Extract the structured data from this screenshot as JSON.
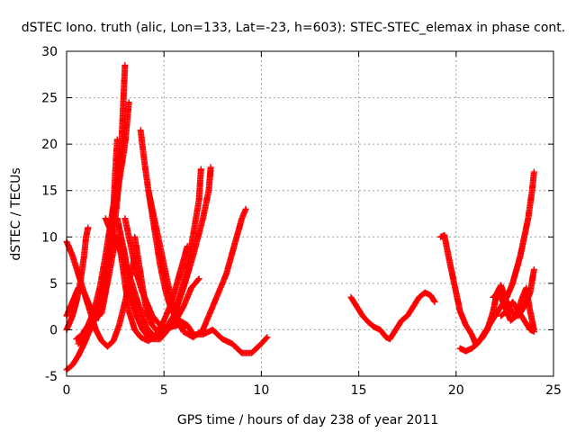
{
  "chart_data": {
    "type": "scatter",
    "title": "dSTEC Iono. truth (alic, Lon=133, Lat=-23, h=603): STEC-STEC_elemax in phase cont.",
    "xlabel": "GPS time / hours of day 238 of year 2011",
    "ylabel": "dSTEC  / TECUs",
    "xlim": [
      0,
      25
    ],
    "ylim": [
      -5,
      30
    ],
    "xticks": [
      "0",
      "5",
      "10",
      "15",
      "20",
      "25"
    ],
    "yticks": [
      "-5",
      "0",
      "5",
      "10",
      "15",
      "20",
      "25",
      "30"
    ],
    "grid": true,
    "marker": "plus",
    "color": "#ff0000",
    "series": [
      {
        "points": [
          [
            0,
            9.5
          ],
          [
            0.3,
            8
          ],
          [
            0.6,
            6
          ],
          [
            0.9,
            4
          ],
          [
            1.2,
            2
          ],
          [
            1.5,
            0
          ],
          [
            1.8,
            -1.2
          ],
          [
            2.1,
            -1.8
          ],
          [
            2.4,
            -1.2
          ],
          [
            2.7,
            0.5
          ],
          [
            3.0,
            3
          ],
          [
            3.3,
            6
          ],
          [
            3.5,
            8
          ]
        ]
      },
      {
        "points": [
          [
            0,
            -4.3
          ],
          [
            0.3,
            -3.8
          ],
          [
            0.6,
            -2.8
          ],
          [
            0.9,
            -1.5
          ],
          [
            1.2,
            0
          ],
          [
            1.5,
            2
          ],
          [
            1.8,
            4
          ],
          [
            2.1,
            6.5
          ],
          [
            2.4,
            10
          ],
          [
            2.6,
            14
          ],
          [
            2.8,
            19
          ],
          [
            2.9,
            24
          ],
          [
            3.0,
            28.5
          ]
        ]
      },
      {
        "points": [
          [
            0,
            0
          ],
          [
            0.3,
            1.5
          ],
          [
            0.5,
            3
          ],
          [
            0.7,
            5
          ],
          [
            0.9,
            8
          ],
          [
            1.0,
            10
          ],
          [
            1.1,
            11
          ]
        ]
      },
      {
        "points": [
          [
            0,
            1.5
          ],
          [
            0.3,
            3
          ],
          [
            0.6,
            4.5
          ],
          [
            0.9,
            4
          ],
          [
            1.2,
            2.5
          ],
          [
            1.5,
            1.2
          ],
          [
            1.8,
            1.8
          ],
          [
            2.0,
            4
          ],
          [
            2.2,
            8
          ],
          [
            2.4,
            13
          ],
          [
            2.5,
            17
          ],
          [
            2.6,
            20.5
          ]
        ]
      },
      {
        "points": [
          [
            0.5,
            -1
          ],
          [
            0.8,
            -0.5
          ],
          [
            1.1,
            0.5
          ],
          [
            1.4,
            2
          ],
          [
            1.7,
            4.5
          ],
          [
            2.0,
            8
          ],
          [
            2.3,
            12
          ],
          [
            2.6,
            16
          ],
          [
            2.8,
            19.5
          ]
        ]
      },
      {
        "points": [
          [
            0.6,
            -1.5
          ],
          [
            0.9,
            -1
          ],
          [
            1.2,
            0
          ],
          [
            1.5,
            1.5
          ],
          [
            1.8,
            4
          ],
          [
            2.1,
            8
          ],
          [
            2.4,
            12
          ],
          [
            2.7,
            16
          ],
          [
            3.0,
            20
          ],
          [
            3.2,
            24.5
          ]
        ]
      },
      {
        "points": [
          [
            1.5,
            1
          ],
          [
            1.8,
            2.5
          ],
          [
            2.1,
            5
          ],
          [
            2.4,
            8.5
          ],
          [
            2.6,
            10
          ],
          [
            2.8,
            8
          ],
          [
            3.0,
            5
          ],
          [
            3.2,
            2
          ],
          [
            3.5,
            0
          ],
          [
            3.8,
            -0.8
          ],
          [
            4.2,
            -1.2
          ],
          [
            4.6,
            -0.5
          ],
          [
            5.0,
            1
          ],
          [
            5.4,
            3
          ],
          [
            5.8,
            6
          ],
          [
            6.2,
            9
          ]
        ]
      },
      {
        "points": [
          [
            2.0,
            12
          ],
          [
            2.3,
            10.5
          ],
          [
            2.6,
            9.5
          ],
          [
            2.9,
            8
          ],
          [
            3.2,
            6
          ],
          [
            3.5,
            4
          ],
          [
            3.8,
            2
          ],
          [
            4.1,
            0.3
          ],
          [
            4.5,
            -0.8
          ],
          [
            5.0,
            -0.2
          ],
          [
            5.5,
            1.5
          ],
          [
            6.0,
            4.5
          ],
          [
            6.5,
            8
          ],
          [
            7.0,
            12
          ],
          [
            7.3,
            15
          ],
          [
            7.4,
            17.5
          ]
        ]
      },
      {
        "points": [
          [
            2.6,
            12
          ],
          [
            2.8,
            10
          ],
          [
            3.0,
            8
          ],
          [
            3.2,
            5
          ],
          [
            3.4,
            3
          ],
          [
            3.6,
            1.5
          ],
          [
            3.9,
            0
          ],
          [
            4.3,
            -1
          ],
          [
            4.8,
            -1
          ],
          [
            5.2,
            0
          ],
          [
            5.6,
            2
          ],
          [
            6.0,
            5
          ],
          [
            6.4,
            9
          ],
          [
            6.8,
            14
          ],
          [
            6.9,
            17.3
          ]
        ]
      },
      {
        "points": [
          [
            3.0,
            12
          ],
          [
            3.3,
            9
          ],
          [
            3.6,
            6
          ],
          [
            3.9,
            4
          ],
          [
            4.1,
            3
          ],
          [
            4.4,
            1.5
          ],
          [
            4.8,
            0.5
          ],
          [
            5.2,
            0.2
          ],
          [
            5.7,
            0.5
          ],
          [
            6.1,
            0.2
          ]
        ]
      },
      {
        "points": [
          [
            3.5,
            10
          ],
          [
            3.8,
            6
          ],
          [
            4.1,
            2
          ],
          [
            4.4,
            0.5
          ],
          [
            4.8,
            -0.5
          ],
          [
            5.2,
            0
          ],
          [
            5.6,
            1
          ],
          [
            6.0,
            2.5
          ],
          [
            6.4,
            4.5
          ],
          [
            6.8,
            5.5
          ]
        ]
      },
      {
        "points": [
          [
            3.8,
            21.5
          ],
          [
            4.0,
            18
          ],
          [
            4.2,
            15
          ],
          [
            4.5,
            11
          ],
          [
            4.8,
            7
          ],
          [
            5.1,
            4
          ],
          [
            5.4,
            2
          ],
          [
            5.8,
            1
          ],
          [
            6.2,
            0.5
          ],
          [
            6.5,
            -0.5
          ],
          [
            7.0,
            -0.5
          ],
          [
            7.5,
            0
          ],
          [
            8.0,
            -1
          ],
          [
            8.5,
            -1.5
          ],
          [
            9.0,
            -2.5
          ],
          [
            9.5,
            -2.5
          ],
          [
            10.0,
            -1.5
          ],
          [
            10.3,
            -0.8
          ]
        ]
      },
      {
        "points": [
          [
            4.2,
            15
          ],
          [
            4.5,
            12
          ],
          [
            4.8,
            9
          ],
          [
            5.1,
            6
          ],
          [
            5.4,
            3
          ],
          [
            5.7,
            1
          ],
          [
            6.0,
            -0.2
          ],
          [
            6.5,
            -0.8
          ],
          [
            7.0,
            0
          ],
          [
            7.4,
            2
          ],
          [
            7.8,
            4
          ],
          [
            8.2,
            6
          ],
          [
            8.6,
            9
          ],
          [
            9.0,
            12
          ],
          [
            9.2,
            13
          ]
        ]
      },
      {
        "points": [
          [
            14.6,
            3.5
          ],
          [
            14.9,
            2.5
          ],
          [
            15.2,
            1.5
          ],
          [
            15.5,
            0.8
          ],
          [
            15.8,
            0.3
          ],
          [
            16.1,
            0
          ],
          [
            16.4,
            -0.8
          ],
          [
            16.6,
            -1
          ],
          [
            16.9,
            0
          ],
          [
            17.2,
            1
          ],
          [
            17.5,
            1.5
          ],
          [
            17.8,
            2.5
          ],
          [
            18.1,
            3.5
          ],
          [
            18.4,
            4
          ],
          [
            18.7,
            3.7
          ],
          [
            18.9,
            3
          ]
        ]
      },
      {
        "points": [
          [
            19.2,
            10
          ],
          [
            19.4,
            10.2
          ],
          [
            19.6,
            8
          ],
          [
            19.8,
            6
          ],
          [
            20.0,
            4
          ],
          [
            20.2,
            2
          ],
          [
            20.5,
            0.5
          ],
          [
            20.8,
            -0.5
          ],
          [
            21.0,
            -1.5
          ],
          [
            21.3,
            -1
          ],
          [
            21.6,
            0
          ],
          [
            21.9,
            2
          ],
          [
            22.1,
            4
          ],
          [
            22.3,
            4.8
          ],
          [
            22.6,
            3
          ],
          [
            22.9,
            1.8
          ],
          [
            23.2,
            1.5
          ],
          [
            23.5,
            2.5
          ],
          [
            23.8,
            4
          ],
          [
            24.0,
            6.5
          ]
        ]
      },
      {
        "points": [
          [
            20.2,
            -2
          ],
          [
            20.5,
            -2.3
          ],
          [
            20.8,
            -2
          ],
          [
            21.1,
            -1.5
          ],
          [
            21.4,
            -0.5
          ],
          [
            21.7,
            0.5
          ],
          [
            22.0,
            1.5
          ],
          [
            22.3,
            2.5
          ],
          [
            22.6,
            3.5
          ],
          [
            22.9,
            5
          ],
          [
            23.1,
            6.5
          ],
          [
            23.3,
            8
          ],
          [
            23.5,
            10
          ],
          [
            23.7,
            12
          ],
          [
            23.9,
            15
          ],
          [
            24.0,
            17
          ]
        ]
      },
      {
        "points": [
          [
            21.9,
            3.5
          ],
          [
            22.2,
            4
          ],
          [
            22.5,
            2.5
          ],
          [
            22.8,
            1
          ],
          [
            23.1,
            1.5
          ],
          [
            23.4,
            3.5
          ],
          [
            23.6,
            4.5
          ],
          [
            23.8,
            2
          ],
          [
            24.0,
            0
          ]
        ]
      },
      {
        "points": [
          [
            22.3,
            1.5
          ],
          [
            22.6,
            2
          ],
          [
            22.9,
            3
          ],
          [
            23.2,
            2
          ],
          [
            23.5,
            1
          ],
          [
            23.8,
            0
          ],
          [
            24.0,
            -0.2
          ]
        ]
      }
    ]
  }
}
